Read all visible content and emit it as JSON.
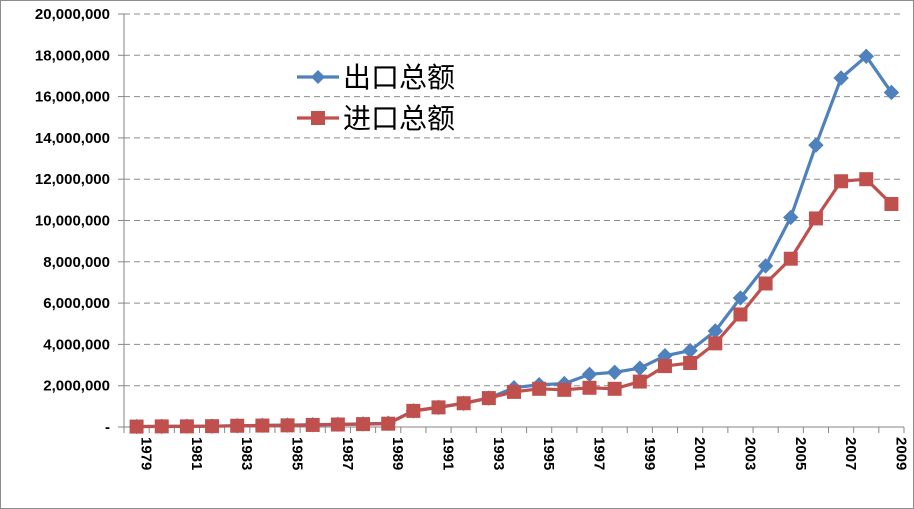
{
  "chart_data": {
    "type": "line",
    "title": "",
    "xlabel": "",
    "ylabel": "",
    "x": [
      1979,
      1980,
      1981,
      1982,
      1983,
      1984,
      1985,
      1986,
      1987,
      1988,
      1989,
      1990,
      1991,
      1992,
      1993,
      1994,
      1995,
      1996,
      1997,
      1998,
      1999,
      2000,
      2001,
      2002,
      2003,
      2004,
      2005,
      2006,
      2007,
      2008,
      2009
    ],
    "x_tick_labels": [
      "1979",
      "1981",
      "1983",
      "1985",
      "1987",
      "1989",
      "1991",
      "1993",
      "1995",
      "1997",
      "1999",
      "2001",
      "2003",
      "2005",
      "2007",
      "2009"
    ],
    "ylim": [
      0,
      20000000
    ],
    "y_tick_labels": [
      "-",
      "2,000,000",
      "4,000,000",
      "6,000,000",
      "8,000,000",
      "10,000,000",
      "12,000,000",
      "14,000,000",
      "16,000,000",
      "18,000,000",
      "20,000,000"
    ],
    "y_ticks": [
      0,
      2000000,
      4000000,
      6000000,
      8000000,
      10000000,
      12000000,
      14000000,
      16000000,
      18000000,
      20000000
    ],
    "grid": true,
    "legend_position": "upper-left",
    "series": [
      {
        "name": "出口总额",
        "color": "#4f81bd",
        "marker": "diamond",
        "values": [
          20000,
          30000,
          40000,
          40000,
          60000,
          80000,
          90000,
          110000,
          130000,
          150000,
          180000,
          780000,
          950000,
          1150000,
          1400000,
          1900000,
          2050000,
          2100000,
          2550000,
          2650000,
          2850000,
          3450000,
          3700000,
          4650000,
          6250000,
          7800000,
          10150000,
          13650000,
          16900000,
          17950000,
          16200000
        ]
      },
      {
        "name": "进口总额",
        "color": "#c0504d",
        "marker": "square",
        "values": [
          20000,
          30000,
          30000,
          40000,
          60000,
          70000,
          80000,
          100000,
          120000,
          140000,
          160000,
          780000,
          950000,
          1150000,
          1400000,
          1700000,
          1850000,
          1800000,
          1900000,
          1850000,
          2200000,
          2950000,
          3100000,
          4050000,
          5450000,
          6950000,
          8150000,
          10100000,
          11900000,
          12000000,
          10800000
        ]
      }
    ]
  }
}
